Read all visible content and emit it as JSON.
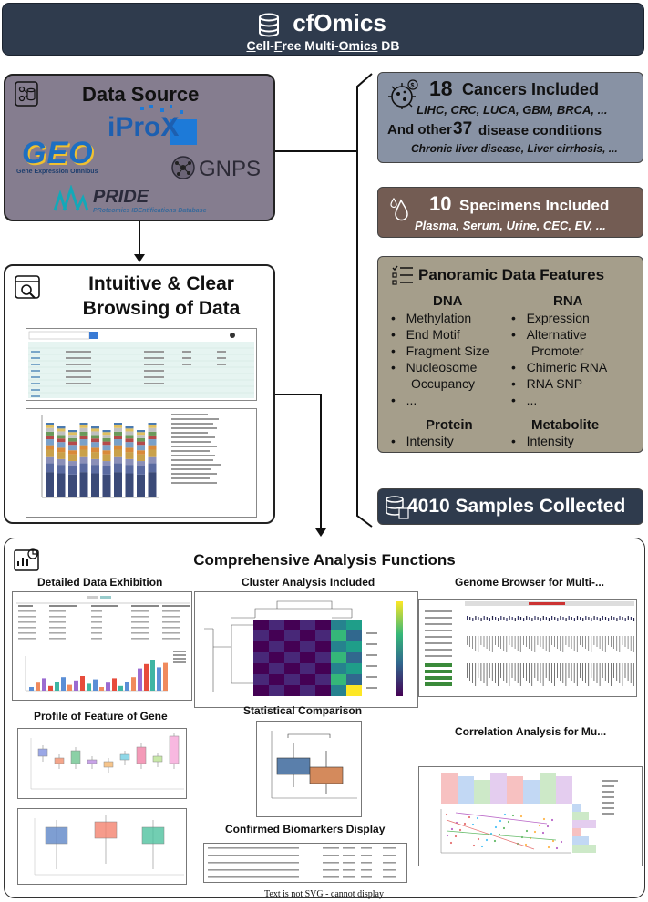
{
  "header": {
    "title": "cfOmics",
    "subtitle_parts": [
      "C",
      "ell-",
      "F",
      "ree Multi-",
      "Omics",
      " DB"
    ]
  },
  "data_source": {
    "title": "Data Source",
    "logos": {
      "iprox": "iProX",
      "geo": "GEO",
      "geo_sub": "Gene Expression Omnibus",
      "gnps": "GNPS",
      "pride": "PRIDE",
      "pride_sub": "PRoteomics IDEntifications Database"
    }
  },
  "browsing": {
    "title_line1": "Intuitive & Clear",
    "title_line2": "Browsing of Data"
  },
  "cancers": {
    "count": "18",
    "label": "Cancers Included",
    "list": "LIHC, CRC, LUCA, GBM, BRCA, ...",
    "other_prefix": "And other",
    "other_count": "37",
    "other_label": "disease conditions",
    "other_list": "Chronic liver disease, Liver cirrhosis, ..."
  },
  "specimens": {
    "count": "10",
    "label": "Specimens Included",
    "list": "Plasma, Serum, Urine, CEC, EV, ..."
  },
  "features": {
    "title": "Panoramic Data Features",
    "dna_header": "DNA",
    "dna_items": [
      "Methylation",
      "End Motif",
      "Fragment Size",
      "Nucleosome",
      "Occupancy",
      "..."
    ],
    "rna_header": "RNA",
    "rna_items": [
      "Expression",
      "Alternative",
      "Promoter",
      "Chimeric RNA",
      "RNA SNP",
      "..."
    ],
    "protein_header": "Protein",
    "protein_items": [
      "Intensity"
    ],
    "metabolite_header": "Metabolite",
    "metabolite_items": [
      "Intensity"
    ]
  },
  "samples": {
    "label": "4010 Samples Collected"
  },
  "analysis": {
    "title": "Comprehensive Analysis Functions",
    "sections": {
      "detailed": "Detailed Data Exhibition",
      "cluster": "Cluster Analysis Included",
      "genome": "Genome Browser for Multi-...",
      "profile": "Profile of Feature of Gene",
      "statistical": "Statistical Comparison",
      "correlation": "Correlation Analysis for Mu...",
      "biomarkers": "Confirmed Biomarkers Display"
    }
  },
  "footnote": "Text is not SVG - cannot display",
  "colors": {
    "header_bg": "#2f3b4d",
    "data_source_bg": "#857d8f",
    "cancers_bg": "#8892a4",
    "specimens_bg": "#735c53",
    "features_bg": "#a59e8b"
  }
}
